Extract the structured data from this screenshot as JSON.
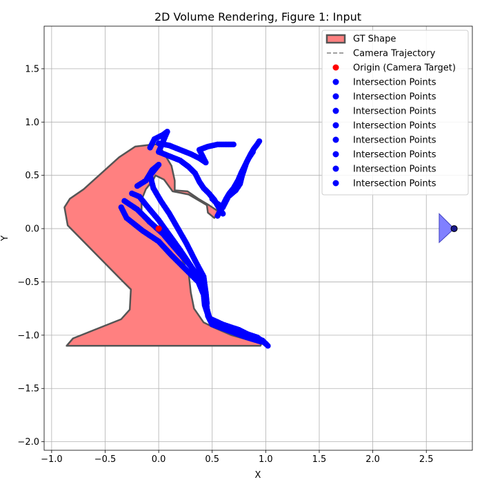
{
  "chart_data": {
    "type": "scatter",
    "title": "2D Volume Rendering, Figure 1: Input",
    "xlabel": "X",
    "ylabel": "Y",
    "xlim": [
      -1.07,
      2.93
    ],
    "ylim": [
      -2.08,
      1.9
    ],
    "xticks": [
      -1.0,
      -0.5,
      0.0,
      0.5,
      1.0,
      1.5,
      2.0,
      2.5
    ],
    "xtick_labels": [
      "−1.0",
      "−0.5",
      "0.0",
      "0.5",
      "1.0",
      "1.5",
      "2.0",
      "2.5"
    ],
    "yticks": [
      -2.0,
      -1.5,
      -1.0,
      -0.5,
      0.0,
      0.5,
      1.0,
      1.5
    ],
    "ytick_labels": [
      "−2.0",
      "−1.5",
      "−1.0",
      "−0.5",
      "0.0",
      "0.5",
      "1.0",
      "1.5"
    ],
    "grid": true,
    "legend_position": "upper right",
    "colors": {
      "gt_fill": "#ff8080",
      "gt_edge": "#555555",
      "points": "#0000ff",
      "origin": "#ff0000",
      "camera": "#8080ff",
      "grid": "#b0b0b0"
    },
    "legend": [
      {
        "label": "GT Shape",
        "kind": "patch"
      },
      {
        "label": "Camera Trajectory",
        "kind": "dashed-line"
      },
      {
        "label": "Origin (Camera Target)",
        "kind": "red-dot"
      },
      {
        "label": "Intersection Points",
        "kind": "blue-dot"
      },
      {
        "label": "Intersection Points",
        "kind": "blue-dot"
      },
      {
        "label": "Intersection Points",
        "kind": "blue-dot"
      },
      {
        "label": "Intersection Points",
        "kind": "blue-dot"
      },
      {
        "label": "Intersection Points",
        "kind": "blue-dot"
      },
      {
        "label": "Intersection Points",
        "kind": "blue-dot"
      },
      {
        "label": "Intersection Points",
        "kind": "blue-dot"
      },
      {
        "label": "Intersection Points",
        "kind": "blue-dot"
      }
    ],
    "gt_shape": [
      [
        -0.86,
        -1.1
      ],
      [
        -0.8,
        -1.03
      ],
      [
        -0.35,
        -0.85
      ],
      [
        -0.27,
        -0.76
      ],
      [
        -0.26,
        -0.57
      ],
      [
        -0.33,
        -0.5
      ],
      [
        -0.85,
        0.03
      ],
      [
        -0.88,
        0.2
      ],
      [
        -0.83,
        0.28
      ],
      [
        -0.7,
        0.37
      ],
      [
        -0.37,
        0.67
      ],
      [
        -0.22,
        0.77
      ],
      [
        -0.05,
        0.79
      ],
      [
        0.0,
        0.79
      ],
      [
        0.12,
        0.59
      ],
      [
        0.15,
        0.45
      ],
      [
        0.15,
        0.36
      ],
      [
        0.27,
        0.35
      ],
      [
        0.37,
        0.28
      ],
      [
        0.47,
        0.22
      ],
      [
        0.56,
        0.16
      ],
      [
        0.52,
        0.1
      ],
      [
        0.46,
        0.15
      ],
      [
        0.45,
        0.22
      ],
      [
        0.4,
        0.25
      ],
      [
        0.28,
        0.32
      ],
      [
        0.13,
        0.35
      ],
      [
        0.05,
        0.46
      ],
      [
        -0.03,
        0.5
      ],
      [
        -0.05,
        0.46
      ],
      [
        -0.12,
        0.37
      ],
      [
        -0.16,
        0.27
      ],
      [
        -0.16,
        0.13
      ],
      [
        -0.1,
        0.05
      ],
      [
        0.05,
        -0.05
      ],
      [
        0.2,
        -0.25
      ],
      [
        0.28,
        -0.42
      ],
      [
        0.3,
        -0.6
      ],
      [
        0.33,
        -0.75
      ],
      [
        0.42,
        -0.88
      ],
      [
        0.52,
        -0.93
      ],
      [
        0.68,
        -1.0
      ],
      [
        0.96,
        -1.08
      ],
      [
        0.95,
        -1.1
      ]
    ],
    "origin": {
      "x": 0.0,
      "y": 0.0
    },
    "camera": {
      "x": 2.76,
      "y": 0.0,
      "frustum": [
        [
          2.76,
          0.0
        ],
        [
          2.62,
          0.14
        ],
        [
          2.62,
          -0.13
        ]
      ]
    },
    "intersection_rays": [
      {
        "pts": [
          [
            -0.35,
            0.2
          ],
          [
            -0.3,
            0.1
          ],
          [
            -0.15,
            -0.02
          ],
          [
            0.0,
            -0.12
          ],
          [
            0.12,
            -0.25
          ],
          [
            0.25,
            -0.38
          ],
          [
            0.37,
            -0.5
          ],
          [
            0.42,
            -0.62
          ],
          [
            0.43,
            -0.72
          ],
          [
            0.47,
            -0.84
          ],
          [
            0.6,
            -0.9
          ],
          [
            0.75,
            -0.95
          ],
          [
            0.85,
            -1.0
          ],
          [
            0.97,
            -1.05
          ],
          [
            1.02,
            -1.1
          ]
        ]
      },
      {
        "pts": [
          [
            -0.32,
            0.26
          ],
          [
            -0.2,
            0.18
          ],
          [
            -0.08,
            0.06
          ],
          [
            0.04,
            -0.05
          ],
          [
            0.15,
            -0.18
          ],
          [
            0.28,
            -0.33
          ],
          [
            0.4,
            -0.48
          ],
          [
            0.44,
            -0.6
          ],
          [
            0.45,
            -0.75
          ],
          [
            0.48,
            -0.86
          ],
          [
            0.62,
            -0.92
          ],
          [
            0.8,
            -0.98
          ],
          [
            0.92,
            -1.02
          ],
          [
            1.0,
            -1.08
          ]
        ]
      },
      {
        "pts": [
          [
            -0.25,
            0.33
          ],
          [
            -0.18,
            0.3
          ],
          [
            -0.1,
            0.2
          ],
          [
            0.0,
            0.08
          ],
          [
            0.1,
            -0.06
          ],
          [
            0.2,
            -0.2
          ],
          [
            0.3,
            -0.35
          ],
          [
            0.4,
            -0.52
          ],
          [
            0.44,
            -0.68
          ],
          [
            0.46,
            -0.82
          ],
          [
            0.5,
            -0.9
          ],
          [
            0.66,
            -0.96
          ],
          [
            0.82,
            -1.02
          ],
          [
            0.95,
            -1.06
          ]
        ]
      },
      {
        "pts": [
          [
            -0.2,
            0.4
          ],
          [
            -0.12,
            0.45
          ],
          [
            -0.06,
            0.55
          ],
          [
            0.0,
            0.6
          ],
          [
            -0.08,
            0.5
          ],
          [
            -0.05,
            0.38
          ],
          [
            0.02,
            0.26
          ],
          [
            0.1,
            0.14
          ],
          [
            0.18,
            0.0
          ],
          [
            0.26,
            -0.14
          ],
          [
            0.34,
            -0.3
          ],
          [
            0.42,
            -0.45
          ],
          [
            0.44,
            -0.6
          ],
          [
            0.45,
            -0.7
          ]
        ]
      },
      {
        "pts": [
          [
            -0.08,
            0.76
          ],
          [
            -0.04,
            0.84
          ],
          [
            0.04,
            0.88
          ],
          [
            0.08,
            0.91
          ],
          [
            0.0,
            0.72
          ],
          [
            0.1,
            0.68
          ],
          [
            0.2,
            0.64
          ],
          [
            0.28,
            0.58
          ],
          [
            0.34,
            0.52
          ],
          [
            0.38,
            0.44
          ],
          [
            0.42,
            0.38
          ],
          [
            0.47,
            0.33
          ],
          [
            0.52,
            0.27
          ],
          [
            0.56,
            0.2
          ],
          [
            0.6,
            0.14
          ]
        ]
      },
      {
        "pts": [
          [
            0.0,
            0.8
          ],
          [
            0.1,
            0.78
          ],
          [
            0.2,
            0.74
          ],
          [
            0.3,
            0.7
          ],
          [
            0.38,
            0.66
          ],
          [
            0.44,
            0.62
          ],
          [
            0.38,
            0.74
          ],
          [
            0.46,
            0.77
          ],
          [
            0.55,
            0.79
          ],
          [
            0.62,
            0.79
          ],
          [
            0.7,
            0.79
          ]
        ]
      },
      {
        "pts": [
          [
            0.55,
            0.12
          ],
          [
            0.58,
            0.18
          ],
          [
            0.6,
            0.22
          ],
          [
            0.63,
            0.28
          ],
          [
            0.66,
            0.33
          ],
          [
            0.7,
            0.38
          ],
          [
            0.74,
            0.45
          ],
          [
            0.77,
            0.52
          ],
          [
            0.8,
            0.58
          ],
          [
            0.83,
            0.64
          ],
          [
            0.86,
            0.7
          ],
          [
            0.89,
            0.75
          ],
          [
            0.92,
            0.79
          ],
          [
            0.94,
            0.82
          ]
        ]
      },
      {
        "pts": [
          [
            0.5,
            0.28
          ],
          [
            0.54,
            0.24
          ],
          [
            0.6,
            0.2
          ],
          [
            0.65,
            0.3
          ],
          [
            0.72,
            0.36
          ],
          [
            0.76,
            0.42
          ],
          [
            0.78,
            0.5
          ],
          [
            0.8,
            0.56
          ],
          [
            0.82,
            0.62
          ],
          [
            0.84,
            0.66
          ],
          [
            0.88,
            0.72
          ]
        ]
      }
    ]
  }
}
